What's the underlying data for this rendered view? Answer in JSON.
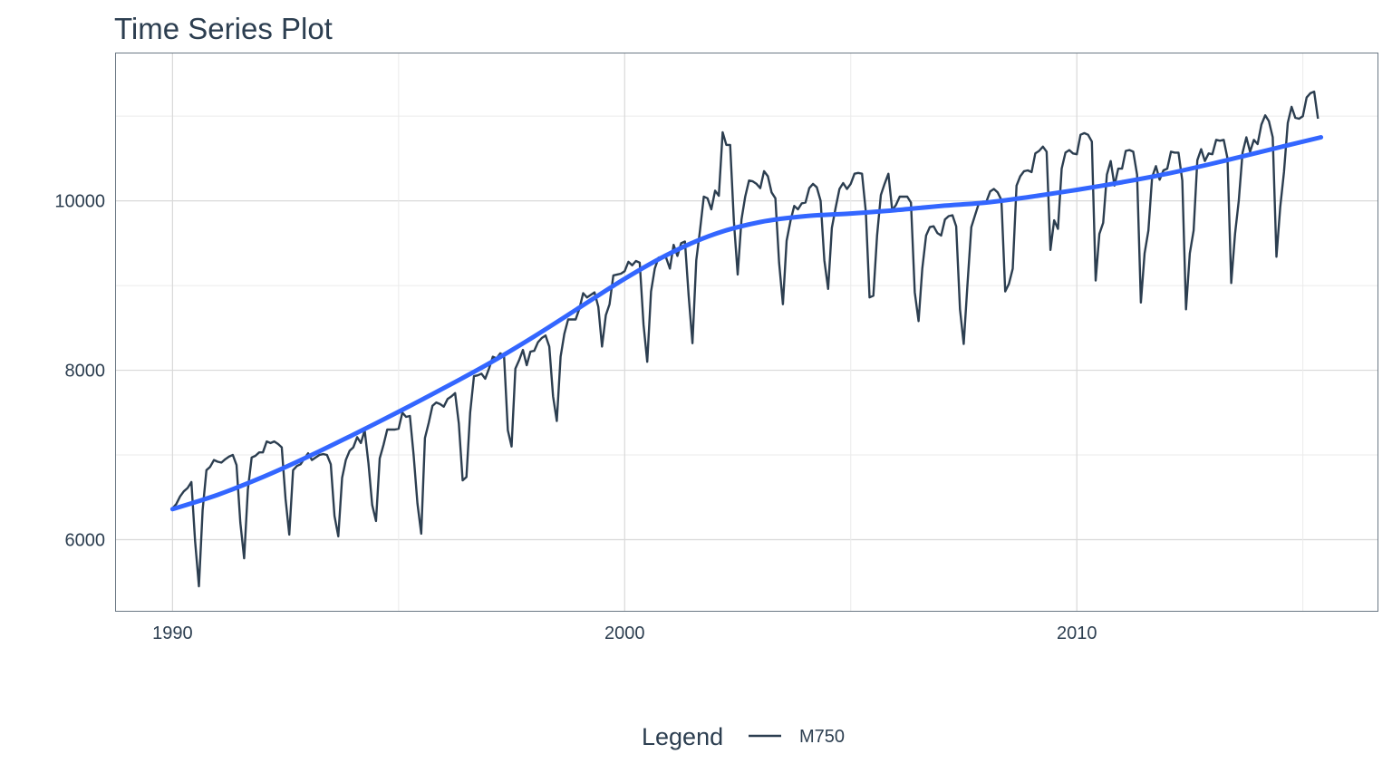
{
  "chart_data": {
    "type": "line",
    "title": "Time Series Plot",
    "xlabel": "",
    "ylabel": "",
    "x_unit": "year",
    "xlim": [
      1988.75,
      2016.65
    ],
    "ylim": [
      5160,
      11740
    ],
    "x_ticks": [
      1990,
      2000,
      2010
    ],
    "x_tick_labels": [
      "1990",
      "2000",
      "2010"
    ],
    "y_ticks": [
      6000,
      8000,
      10000
    ],
    "y_tick_labels": [
      "6000",
      "8000",
      "10000"
    ],
    "grid": true,
    "legend": {
      "title": "Legend",
      "position": "bottom",
      "entries": [
        "M750"
      ]
    },
    "series": [
      {
        "name": "M750",
        "color": "#2c3e50",
        "start": 1990.0,
        "step": 0.08333,
        "values": [
          6370,
          6420,
          6510,
          6570,
          6610,
          6680,
          5980,
          5450,
          6350,
          6820,
          6860,
          6940,
          6920,
          6910,
          6950,
          6980,
          7000,
          6880,
          6200,
          5780,
          6590,
          6970,
          6990,
          7030,
          7030,
          7160,
          7140,
          7160,
          7130,
          7090,
          6480,
          6060,
          6820,
          6870,
          6890,
          6960,
          7020,
          6940,
          6970,
          7000,
          7010,
          7000,
          6890,
          6280,
          6040,
          6730,
          6940,
          7050,
          7090,
          7210,
          7140,
          7290,
          6900,
          6410,
          6220,
          6960,
          7120,
          7300,
          7300,
          7300,
          7310,
          7500,
          7450,
          7460,
          7000,
          6430,
          6070,
          7200,
          7380,
          7580,
          7620,
          7600,
          7570,
          7660,
          7690,
          7730,
          7370,
          6700,
          6740,
          7500,
          7930,
          7940,
          7960,
          7900,
          8020,
          8160,
          8140,
          8200,
          8170,
          7290,
          7100,
          8020,
          8120,
          8240,
          8060,
          8220,
          8230,
          8330,
          8380,
          8410,
          8280,
          7690,
          7400,
          8160,
          8430,
          8600,
          8600,
          8600,
          8730,
          8910,
          8860,
          8890,
          8920,
          8750,
          8280,
          8650,
          8780,
          9120,
          9130,
          9140,
          9170,
          9280,
          9240,
          9290,
          9270,
          8540,
          8100,
          8930,
          9200,
          9330,
          9340,
          9330,
          9200,
          9480,
          9350,
          9500,
          9520,
          8880,
          8320,
          9300,
          9650,
          10050,
          10030,
          9900,
          10120,
          10060,
          10810,
          10660,
          10660,
          9760,
          9130,
          9780,
          10050,
          10240,
          10230,
          10200,
          10150,
          10350,
          10290,
          10100,
          10030,
          9270,
          8780,
          9530,
          9760,
          9940,
          9900,
          9970,
          9980,
          10150,
          10200,
          10160,
          10000,
          9300,
          8960,
          9680,
          9920,
          10140,
          10210,
          10140,
          10200,
          10320,
          10330,
          10320,
          9870,
          8860,
          8880,
          9590,
          10070,
          10200,
          10320,
          9890,
          9950,
          10050,
          10050,
          10050,
          9980,
          8920,
          8580,
          9200,
          9590,
          9690,
          9700,
          9620,
          9590,
          9780,
          9820,
          9830,
          9700,
          8720,
          8310,
          9020,
          9690,
          9830,
          9970,
          9990,
          9990,
          10110,
          10140,
          10100,
          10010,
          8930,
          9020,
          9200,
          10180,
          10290,
          10350,
          10360,
          10340,
          10560,
          10590,
          10640,
          10580,
          9420,
          9770,
          9670,
          10380,
          10570,
          10600,
          10560,
          10550,
          10780,
          10800,
          10780,
          10700,
          9060,
          9610,
          9740,
          10310,
          10470,
          10180,
          10380,
          10380,
          10590,
          10600,
          10580,
          10310,
          8800,
          9380,
          9650,
          10280,
          10410,
          10250,
          10360,
          10380,
          10580,
          10570,
          10570,
          10240,
          8720,
          9380,
          9650,
          10480,
          10610,
          10470,
          10560,
          10550,
          10720,
          10710,
          10720,
          10500,
          9030,
          9610,
          10000,
          10570,
          10750,
          10580,
          10720,
          10670,
          10900,
          11010,
          10940,
          10750,
          9340,
          9930,
          10340,
          10920,
          11110,
          10980,
          10970,
          11000,
          11220,
          11270,
          11290,
          10970
        ]
      },
      {
        "name": "",
        "type": "smooth",
        "color": "#3366ff",
        "x": [
          1990.0,
          1991.0,
          1992.0,
          1993.0,
          1994.0,
          1995.0,
          1996.0,
          1997.0,
          1998.0,
          1999.0,
          2000.0,
          2001.0,
          2002.0,
          2003.0,
          2004.0,
          2005.0,
          2006.0,
          2007.0,
          2008.0,
          2009.0,
          2010.0,
          2011.0,
          2012.0,
          2013.0,
          2014.0,
          2015.4
        ],
        "values": [
          6360,
          6530,
          6740,
          6980,
          7240,
          7510,
          7790,
          8080,
          8400,
          8740,
          9080,
          9380,
          9610,
          9750,
          9820,
          9850,
          9890,
          9940,
          9980,
          10050,
          10130,
          10220,
          10320,
          10440,
          10570,
          10750
        ]
      }
    ]
  }
}
